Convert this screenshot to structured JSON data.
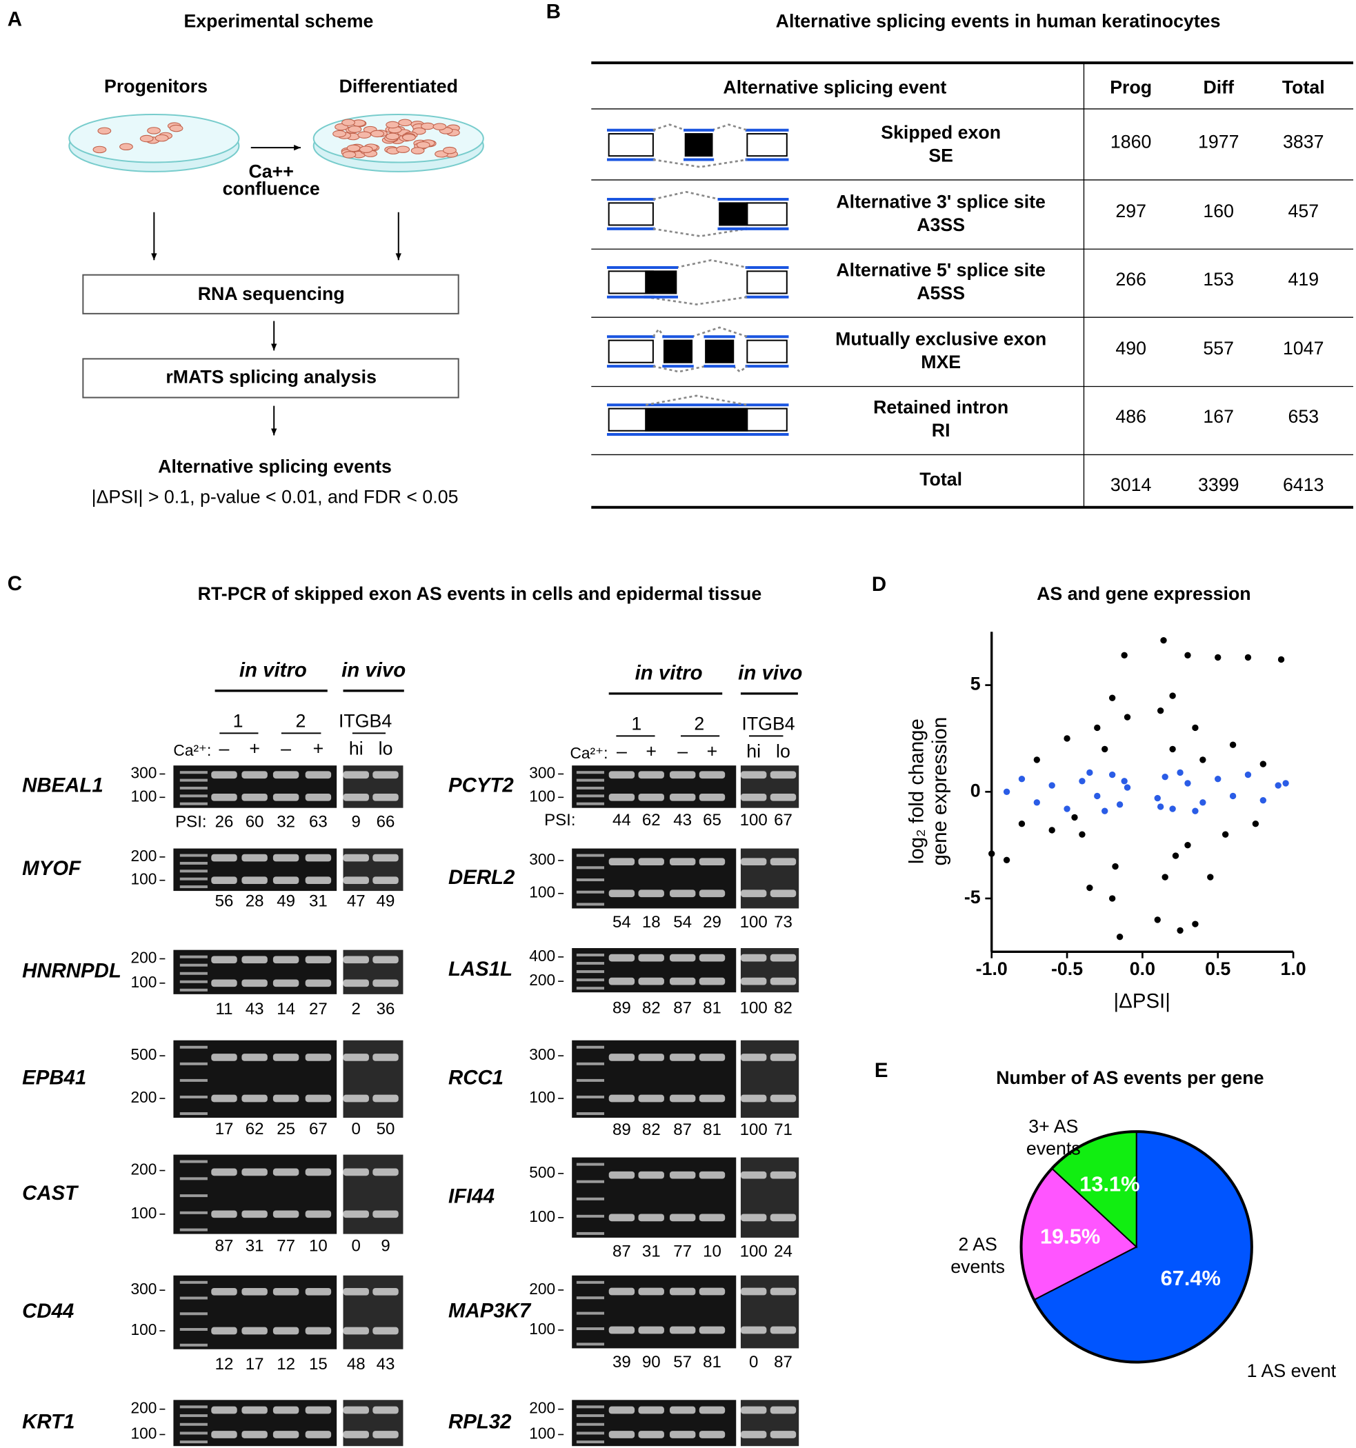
{
  "panel_a": {
    "label": "A",
    "title": "Experimental scheme",
    "start": "Progenitors",
    "end": "Differentiated",
    "treatment": [
      "Ca++",
      "confluence"
    ],
    "steps": [
      "RNA sequencing",
      "rMATS splicing analysis"
    ],
    "result": "Alternative splicing events",
    "criteria": "|ΔPSI| > 0.1, p-value < 0.01, and FDR < 0.05"
  },
  "panel_b": {
    "label": "B",
    "title": "Alternative splicing events in human keratinocytes",
    "header": [
      "Alternative splicing event",
      "Prog",
      "Diff",
      "Total"
    ],
    "rows": [
      {
        "event": "Skipped exon",
        "abbr": "SE",
        "counts": [
          1860,
          1977,
          3837
        ]
      },
      {
        "event": "Alternative 3' splice site",
        "abbr": "A3SS",
        "counts": [
          297,
          160,
          457
        ]
      },
      {
        "event": "Alternative 5' splice site",
        "abbr": "A5SS",
        "counts": [
          266,
          153,
          419
        ]
      },
      {
        "event": "Mutually exclusive exon",
        "abbr": "MXE",
        "counts": [
          490,
          557,
          1047
        ]
      },
      {
        "event": "Retained intron",
        "abbr": "RI",
        "counts": [
          486,
          167,
          653
        ]
      }
    ],
    "total": {
      "label": "Total",
      "counts": [
        3014,
        3399,
        6413
      ]
    }
  },
  "panel_c": {
    "label": "C",
    "title": "RT-PCR of skipped exon AS events in cells and epidermal tissue",
    "columns": [
      {
        "in_vitro": "in vitro",
        "in_vivo": "in vivo",
        "replicates": [
          "1",
          "2"
        ],
        "marker": "ITGB4",
        "ca_label": "Ca²⁺:",
        "conditions": [
          "–",
          "+",
          "–",
          "+",
          "hi",
          "lo"
        ],
        "psi_label": "PSI:",
        "genes": [
          {
            "name": "NBEAL1",
            "ladder": [
              300,
              100
            ],
            "psi": [
              26,
              60,
              32,
              63,
              9,
              66
            ]
          },
          {
            "name": "MYOF",
            "ladder": [
              200,
              100
            ],
            "psi": [
              56,
              28,
              49,
              31,
              47,
              49
            ]
          },
          {
            "name": "HNRNPDL",
            "ladder": [
              200,
              100
            ],
            "psi": [
              11,
              43,
              14,
              27,
              2,
              36
            ]
          },
          {
            "name": "EPB41",
            "ladder": [
              500,
              200
            ],
            "psi": [
              17,
              62,
              25,
              67,
              0,
              50
            ]
          },
          {
            "name": "CAST",
            "ladder": [
              200,
              100
            ],
            "psi": [
              87,
              31,
              77,
              10,
              0,
              9
            ]
          },
          {
            "name": "CD44",
            "ladder": [
              300,
              100
            ],
            "psi": [
              12,
              17,
              12,
              15,
              48,
              43
            ]
          },
          {
            "name": "KRT1",
            "ladder": [
              200,
              100
            ]
          }
        ]
      },
      {
        "in_vitro": "in vitro",
        "in_vivo": "in vivo",
        "replicates": [
          "1",
          "2"
        ],
        "marker": "ITGB4",
        "ca_label": "Ca²⁺:",
        "conditions": [
          "–",
          "+",
          "–",
          "+",
          "hi",
          "lo"
        ],
        "psi_label": "PSI:",
        "genes": [
          {
            "name": "PCYT2",
            "ladder": [
              300,
              100
            ],
            "psi": [
              44,
              62,
              43,
              65,
              100,
              67
            ]
          },
          {
            "name": "DERL2",
            "ladder": [
              300,
              100
            ],
            "psi": [
              54,
              18,
              54,
              29,
              100,
              73
            ]
          },
          {
            "name": "LAS1L",
            "ladder": [
              400,
              200
            ],
            "psi": [
              89,
              82,
              87,
              81,
              100,
              82
            ]
          },
          {
            "name": "RCC1",
            "ladder": [
              300,
              100
            ],
            "psi": [
              89,
              82,
              87,
              81,
              100,
              71
            ]
          },
          {
            "name": "IFI44",
            "ladder": [
              500,
              100
            ],
            "psi": [
              87,
              31,
              77,
              10,
              100,
              24
            ]
          },
          {
            "name": "MAP3K7",
            "ladder": [
              200,
              100
            ],
            "psi": [
              39,
              90,
              57,
              81,
              0,
              87
            ]
          },
          {
            "name": "RPL32",
            "ladder": [
              200,
              100
            ]
          }
        ]
      }
    ]
  },
  "chart_data": [
    {
      "type": "scatter",
      "panel_label": "D",
      "title": "AS and gene expression",
      "xlabel": "|ΔPSI|",
      "ylabel": [
        "log₂ fold change",
        "gene expression"
      ],
      "xlim": [
        -1,
        1
      ],
      "ylim": [
        -7.5,
        7.5
      ],
      "xticks": [
        {
          "value": -1,
          "label": "-1.0"
        },
        {
          "value": -0.5,
          "label": "-0.5"
        },
        {
          "value": 0,
          "label": "0.0"
        },
        {
          "value": 0.5,
          "label": "0.5"
        },
        {
          "value": 1,
          "label": "1.0"
        }
      ],
      "yticks": [
        -5,
        0,
        5
      ],
      "series": [
        {
          "color": "#000000",
          "x": [
            -0.2,
            -0.12,
            -0.3,
            -0.5,
            -0.7,
            -0.9,
            -0.4,
            -0.15,
            -0.2,
            -0.6,
            0.14,
            0.3,
            0.5,
            0.7,
            0.92,
            0.2,
            0.35,
            0.6,
            0.8,
            0.3,
            0.55,
            0.1,
            0.25,
            0.35,
            0.15,
            0.45,
            -0.8,
            -1.0,
            -0.35,
            0.75,
            -0.25,
            0.2,
            -0.1,
            0.12,
            -0.45,
            0.4,
            -0.18,
            0.22
          ],
          "values": [
            4.4,
            6.4,
            3,
            2.5,
            1.5,
            -3.2,
            -2,
            -6.8,
            -5,
            -1.8,
            7.1,
            6.4,
            6.3,
            6.3,
            6.2,
            4.5,
            3,
            2.2,
            1.3,
            -2.5,
            -2,
            -6,
            -6.5,
            -6.2,
            -4,
            -4,
            -1.5,
            -2.9,
            -4.5,
            -1.5,
            2,
            2,
            3.5,
            3.8,
            -1.2,
            1.5,
            -3.5,
            -3
          ]
        },
        {
          "color": "#2a5ce6",
          "x": [
            -0.9,
            -0.8,
            -0.7,
            -0.6,
            -0.5,
            -0.4,
            -0.3,
            -0.2,
            -0.15,
            -0.1,
            0.1,
            0.15,
            0.2,
            0.3,
            0.4,
            0.5,
            0.6,
            0.7,
            0.8,
            0.9,
            0.95,
            -0.25,
            -0.35,
            0.25,
            0.35,
            -0.12,
            0.12
          ],
          "values": [
            0,
            0.6,
            -0.5,
            0.3,
            -0.8,
            0.5,
            -0.2,
            0.8,
            -0.6,
            0.2,
            -0.3,
            0.7,
            -0.8,
            0.4,
            -0.5,
            0.6,
            -0.2,
            0.8,
            -0.4,
            0.3,
            0.4,
            -0.9,
            0.9,
            0.9,
            -0.9,
            0.5,
            -0.7
          ]
        }
      ]
    },
    {
      "type": "pie",
      "panel_label": "E",
      "title": "Number of AS events per gene",
      "categories": [
        "1 AS event",
        "2 AS events",
        "3+ AS events"
      ],
      "values": [
        67.4,
        19.5,
        13.1
      ],
      "value_labels": [
        "67.4%",
        "19.5%",
        "13.1%"
      ],
      "colors": [
        "#0055ff",
        "#ff55ff",
        "#11ee11"
      ]
    }
  ]
}
